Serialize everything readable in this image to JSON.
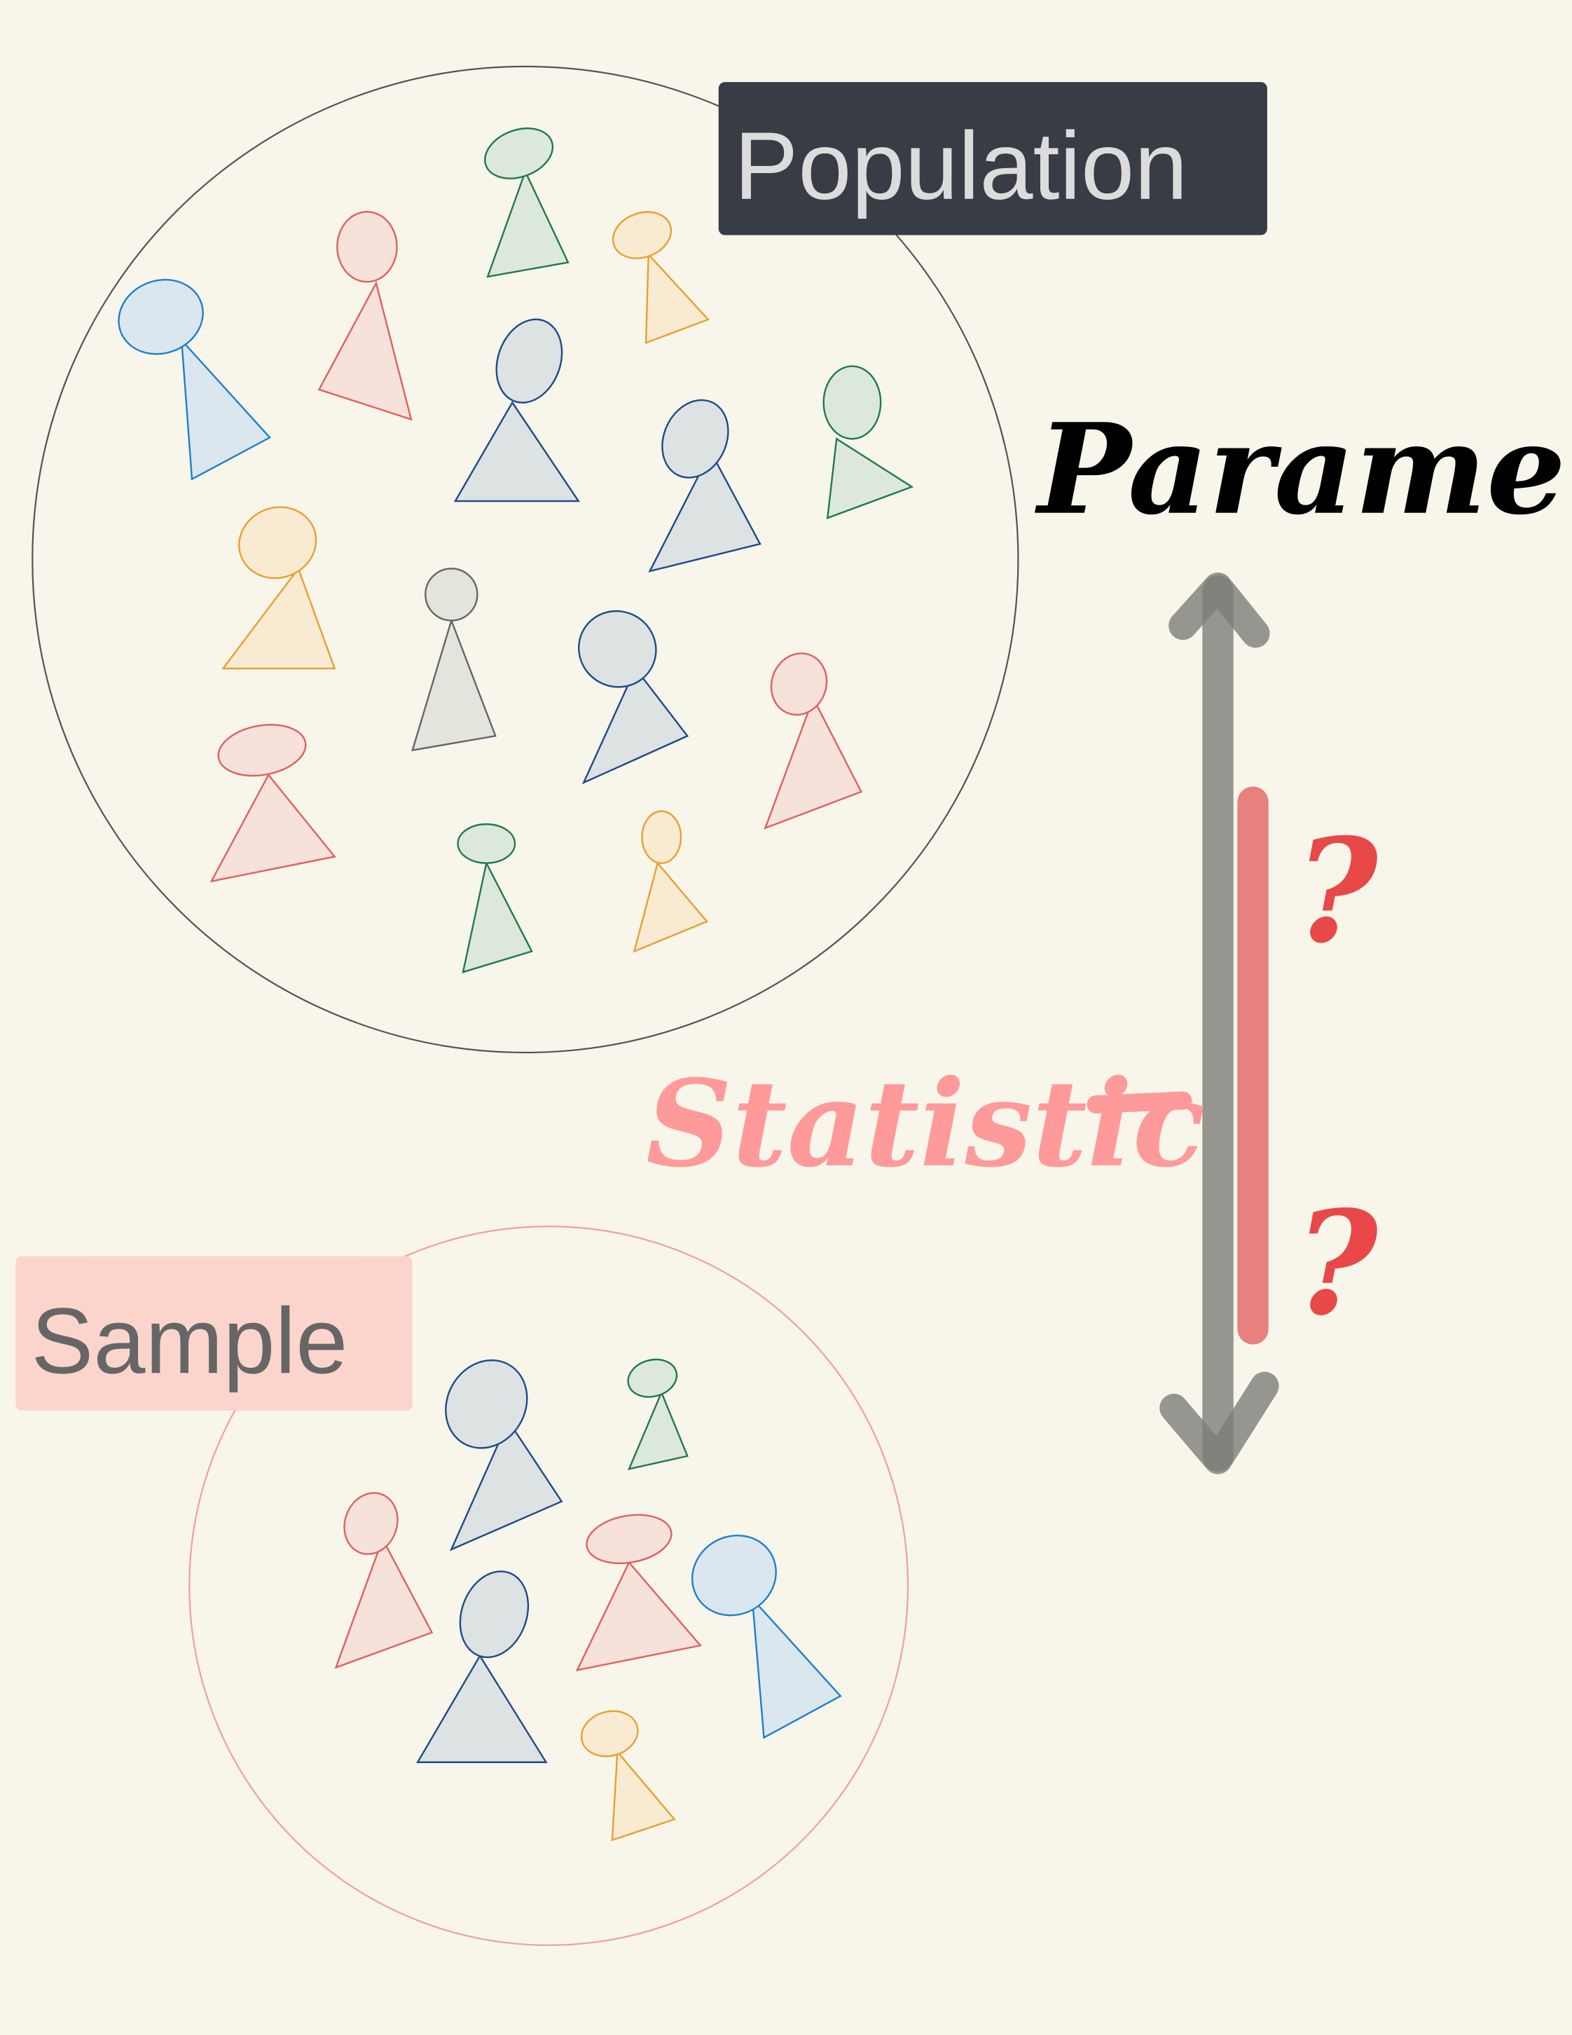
{
  "population_label": "Population",
  "sample_label": "Sample",
  "parameter_label": "Parameter",
  "statistic_label": "Statistic",
  "question_marks": [
    "?",
    "?"
  ]
}
